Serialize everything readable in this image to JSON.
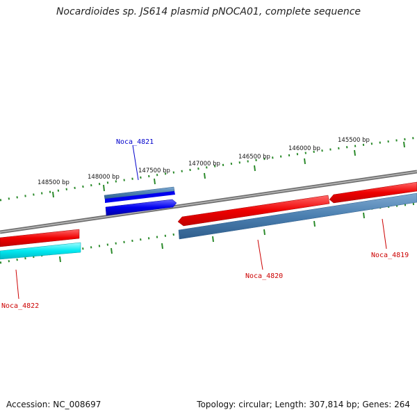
{
  "title": "Nocardioides sp. JS614 plasmid pNOCA01, complete sequence",
  "ticks": [
    {
      "label": "148500 bp"
    },
    {
      "label": "148000 bp"
    },
    {
      "label": "147500 bp"
    },
    {
      "label": "147000 bp"
    },
    {
      "label": "146500 bp"
    },
    {
      "label": "146000 bp"
    },
    {
      "label": "145500 bp"
    }
  ],
  "genes": [
    {
      "name": "Noca_4821",
      "color": "#0000cc"
    },
    {
      "name": "Noca_4820",
      "color": "#cc0000"
    },
    {
      "name": "Noca_4819",
      "color": "#cc0000"
    },
    {
      "name": "Noca_4822",
      "color": "#cc0000"
    }
  ],
  "footer": {
    "accession": "Accession: NC_008697",
    "summary": "Topology: circular; Length: 307,814 bp; Genes: 264"
  },
  "colors": {
    "backbone": "#888888",
    "forward_gene": "#ee1111",
    "reverse_gene": "#1111ee",
    "cds_band": "#4a7fb0",
    "cyan_feature": "#00e5ee",
    "tick": "#2a8a2a"
  }
}
